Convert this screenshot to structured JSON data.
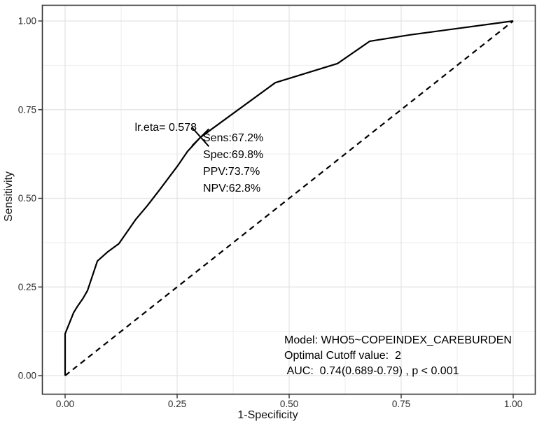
{
  "chart_data": {
    "type": "line",
    "title": "",
    "xlabel": "1-Specificity",
    "ylabel": "Sensitivity",
    "xlim": [
      0,
      1
    ],
    "ylim": [
      0,
      1
    ],
    "grid": "major+minor",
    "legend": "none",
    "axes": {
      "x": {
        "ticks": [
          0,
          0.25,
          0.5,
          0.75,
          1
        ],
        "tick_labels": [
          "0.00",
          "0.25",
          "0.50",
          "0.75",
          "1.00"
        ],
        "minor_ticks": [
          0.125,
          0.375,
          0.625,
          0.875
        ]
      },
      "y": {
        "ticks": [
          0,
          0.25,
          0.5,
          0.75,
          1
        ],
        "tick_labels": [
          "0.00",
          "0.25",
          "0.50",
          "0.75",
          "1.00"
        ],
        "minor_ticks": [
          0.125,
          0.375,
          0.625,
          0.875
        ]
      }
    },
    "series": [
      {
        "name": "ROC curve",
        "style": "solid",
        "color": "#000000",
        "points": [
          [
            0.0,
            0.0
          ],
          [
            0.0,
            0.118
          ],
          [
            0.019,
            0.178
          ],
          [
            0.028,
            0.196
          ],
          [
            0.04,
            0.218
          ],
          [
            0.05,
            0.24
          ],
          [
            0.072,
            0.323
          ],
          [
            0.096,
            0.35
          ],
          [
            0.12,
            0.372
          ],
          [
            0.158,
            0.441
          ],
          [
            0.184,
            0.48
          ],
          [
            0.211,
            0.524
          ],
          [
            0.252,
            0.593
          ],
          [
            0.273,
            0.632
          ],
          [
            0.302,
            0.672
          ],
          [
            0.469,
            0.826
          ],
          [
            0.608,
            0.88
          ],
          [
            0.68,
            0.943
          ],
          [
            0.77,
            0.961
          ],
          [
            1.0,
            1.0
          ]
        ]
      },
      {
        "name": "Chance diagonal",
        "style": "dashed",
        "color": "#000000",
        "points": [
          [
            0,
            0
          ],
          [
            1,
            1
          ]
        ]
      }
    ],
    "optimal_point": {
      "x": 0.302,
      "y": 0.672,
      "marker": "x"
    },
    "annotations": {
      "cutoff_label": "lr.eta= 0.578",
      "metrics": [
        "Sens:67.2%",
        "Spec:69.8%",
        "PPV:73.7%",
        "NPV:62.8%"
      ],
      "model_info": [
        "Model: WHO5~COPEINDEX_CAREBURDEN",
        "Optimal Cutoff value:  2",
        " AUC:  0.74(0.689-0.79) , p < 0.001"
      ]
    },
    "stats": {
      "lr_eta": 0.578,
      "sensitivity_pct": 67.2,
      "specificity_pct": 69.8,
      "ppv_pct": 73.7,
      "npv_pct": 62.8,
      "optimal_cutoff": 2,
      "auc": 0.74,
      "auc_ci": "0.689-0.79",
      "p_value": "p < 0.001"
    },
    "colors": {
      "curve": "#000000",
      "diagonal": "#000000",
      "grid_major": "#e3e3e3",
      "grid_minor": "#eeeeee",
      "panel_border": "#333333",
      "tick_mark": "#333333",
      "tick_text": "#2b2b2b",
      "background": "#ffffff"
    }
  }
}
